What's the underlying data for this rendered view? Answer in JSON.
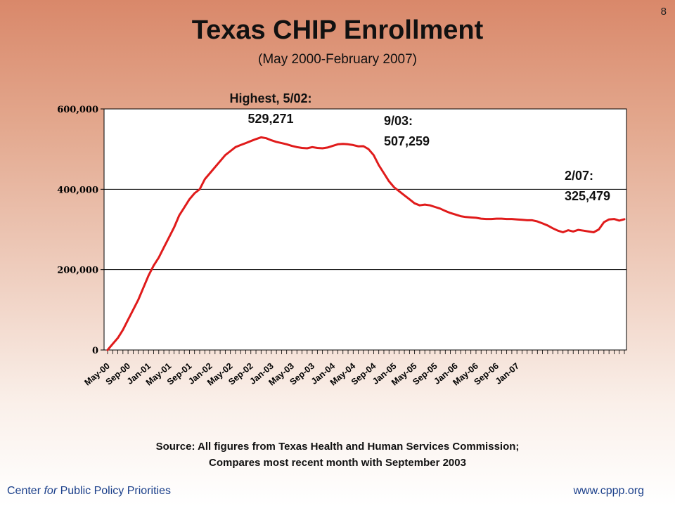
{
  "slide_number": "8",
  "title": "Texas CHIP Enrollment",
  "subtitle": "(May 2000-February 2007)",
  "annotations": {
    "peak_label": "Highest, 5/02:",
    "peak_value": "529,271",
    "sep03_label": "9/03:",
    "sep03_value": "507,259",
    "feb07_label": "2/07:",
    "feb07_value": "325,479"
  },
  "source_line1": "Source: All figures from Texas Health and Human Services Commission;",
  "source_line2": "Compares most recent month with September 2003",
  "footer": {
    "left_prefix": "Center ",
    "left_italic": "for",
    "left_suffix": " Public Policy Priorities",
    "right": "www.cppp.org"
  },
  "colors": {
    "line": "#e01b1b",
    "grid": "#000000"
  },
  "chart_data": {
    "type": "line",
    "ylim": [
      0,
      600000
    ],
    "yticks": [
      0,
      200000,
      400000,
      600000
    ],
    "ytick_labels": [
      "0",
      "200,000",
      "400,000",
      "600,000"
    ],
    "xtick_labels": [
      "May-00",
      "Sep-00",
      "Jan-01",
      "May-01",
      "Sep-01",
      "Jan-02",
      "May-02",
      "Sep-02",
      "Jan-03",
      "May-03",
      "Sep-03",
      "Jan-04",
      "May-04",
      "Sep-04",
      "Jan-05",
      "May-05",
      "Sep-05",
      "Jan-06",
      "May-06",
      "Sep-06",
      "Jan-07"
    ],
    "grid": "horizontal",
    "series": [
      {
        "values": [
          0,
          15000,
          30000,
          50000,
          75000,
          100000,
          125000,
          155000,
          185000,
          210000,
          230000,
          255000,
          280000,
          305000,
          335000,
          355000,
          375000,
          390000,
          400000,
          425000,
          440000,
          455000,
          470000,
          485000,
          495000,
          505000,
          510000,
          515000,
          520000,
          525000,
          529271,
          527000,
          522000,
          518000,
          515000,
          512000,
          508000,
          505000,
          503000,
          502000,
          505000,
          503000,
          502000,
          504000,
          508000,
          512000,
          513000,
          512000,
          510000,
          507000,
          507259,
          500000,
          485000,
          460000,
          440000,
          420000,
          405000,
          395000,
          385000,
          375000,
          365000,
          360000,
          362000,
          360000,
          356000,
          352000,
          346000,
          341000,
          337000,
          333000,
          331000,
          330000,
          329000,
          327000,
          326000,
          326000,
          327000,
          327000,
          326000,
          326000,
          325000,
          324000,
          323000,
          323000,
          320000,
          315000,
          310000,
          303000,
          297000,
          293000,
          298000,
          295000,
          299000,
          297000,
          295000,
          293000,
          300000,
          318000,
          325000,
          326000,
          322000,
          325479
        ]
      }
    ]
  }
}
